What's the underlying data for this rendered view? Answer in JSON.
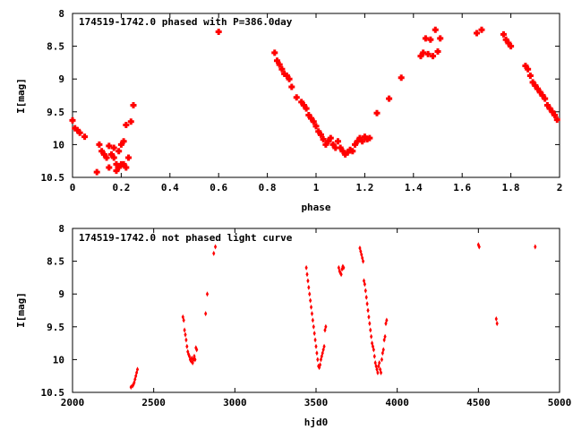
{
  "colors": {
    "points": "#ff0000",
    "axes": "#000000",
    "background": "#ffffff"
  },
  "chart_data": [
    {
      "type": "scatter",
      "title": "174519-1742.0 phased with P=386.0day",
      "xlabel": "phase",
      "ylabel": "I[mag]",
      "xlim": [
        0,
        2
      ],
      "ylim": [
        8,
        10.5
      ],
      "y_inverted": true,
      "xticks": [
        "0",
        "0.2",
        "0.4",
        "0.6",
        "0.8",
        "1",
        "1.2",
        "1.4",
        "1.6",
        "1.8",
        "2"
      ],
      "yticks": [
        "8",
        "8.5",
        "9",
        "9.5",
        "10",
        "10.5"
      ],
      "marker": "cross",
      "series": [
        {
          "x": [
            0.0,
            0.01,
            0.02,
            0.03,
            0.05,
            0.1,
            0.11,
            0.12,
            0.13,
            0.14,
            0.15,
            0.15,
            0.16,
            0.17,
            0.17,
            0.18,
            0.18,
            0.19,
            0.19,
            0.2,
            0.2,
            0.21,
            0.21,
            0.22,
            0.22,
            0.23,
            0.24,
            0.25,
            0.6,
            0.83,
            0.84,
            0.85,
            0.86,
            0.87,
            0.88,
            0.89,
            0.9,
            0.92,
            0.94,
            0.95,
            0.96,
            0.97,
            0.98,
            0.99,
            1.0,
            1.01,
            1.02,
            1.03,
            1.04,
            1.05,
            1.06,
            1.07,
            1.08,
            1.09,
            1.1,
            1.11,
            1.12,
            1.13,
            1.14,
            1.15,
            1.16,
            1.17,
            1.18,
            1.19,
            1.2,
            1.21,
            1.22,
            1.25,
            1.3,
            1.35,
            1.43,
            1.44,
            1.45,
            1.46,
            1.47,
            1.48,
            1.49,
            1.5,
            1.51,
            1.66,
            1.68,
            1.77,
            1.78,
            1.79,
            1.8,
            1.86,
            1.87,
            1.88,
            1.89,
            1.9,
            1.91,
            1.92,
            1.93,
            1.94,
            1.95,
            1.96,
            1.97,
            1.98,
            1.99
          ],
          "y": [
            9.63,
            9.75,
            9.78,
            9.82,
            9.88,
            10.42,
            10.0,
            10.1,
            10.15,
            10.2,
            10.02,
            10.35,
            10.15,
            10.2,
            10.05,
            10.3,
            10.4,
            10.35,
            10.1,
            10.3,
            10.0,
            9.95,
            10.3,
            9.7,
            10.35,
            10.2,
            9.65,
            9.4,
            8.28,
            8.6,
            8.72,
            8.78,
            8.85,
            8.92,
            8.95,
            9.0,
            9.12,
            9.28,
            9.35,
            9.4,
            9.45,
            9.55,
            9.6,
            9.65,
            9.72,
            9.8,
            9.85,
            9.92,
            10.0,
            9.95,
            9.9,
            10.0,
            10.05,
            9.95,
            10.05,
            10.1,
            10.15,
            10.12,
            10.08,
            10.1,
            10.0,
            9.95,
            9.9,
            9.95,
            9.88,
            9.92,
            9.9,
            9.52,
            9.3,
            8.98,
            8.65,
            8.6,
            8.38,
            8.62,
            8.4,
            8.65,
            8.25,
            8.58,
            8.38,
            8.3,
            8.25,
            8.32,
            8.4,
            8.45,
            8.5,
            8.8,
            8.85,
            8.95,
            9.05,
            9.1,
            9.15,
            9.2,
            9.25,
            9.3,
            9.4,
            9.45,
            9.5,
            9.55,
            9.62
          ]
        }
      ]
    },
    {
      "type": "scatter",
      "title": "174519-1742.0 not phased light curve",
      "xlabel": "hjd0",
      "ylabel": "I[mag]",
      "xlim": [
        2000,
        5000
      ],
      "ylim": [
        8,
        10.5
      ],
      "y_inverted": true,
      "xticks": [
        "2000",
        "2500",
        "3000",
        "3500",
        "4000",
        "4500",
        "5000"
      ],
      "yticks": [
        "8",
        "8.5",
        "9",
        "9.5",
        "10",
        "10.5"
      ],
      "marker": "diamond",
      "series": [
        {
          "x": [
            2360,
            2370,
            2375,
            2380,
            2385,
            2390,
            2395,
            2400,
            2680,
            2685,
            2690,
            2695,
            2700,
            2705,
            2710,
            2715,
            2720,
            2725,
            2730,
            2735,
            2740,
            2745,
            2750,
            2755,
            2760,
            2765,
            2820,
            2830,
            2870,
            2880,
            3440,
            3445,
            3450,
            3455,
            3460,
            3465,
            3470,
            3475,
            3480,
            3485,
            3490,
            3495,
            3500,
            3505,
            3510,
            3515,
            3520,
            3525,
            3530,
            3535,
            3540,
            3545,
            3550,
            3555,
            3560,
            3640,
            3645,
            3650,
            3655,
            3660,
            3665,
            3670,
            3770,
            3775,
            3780,
            3785,
            3790,
            3795,
            3800,
            3805,
            3810,
            3815,
            3820,
            3825,
            3830,
            3835,
            3840,
            3845,
            3850,
            3855,
            3860,
            3865,
            3870,
            3875,
            3880,
            3885,
            3890,
            3895,
            3900,
            3905,
            3910,
            3915,
            3920,
            3925,
            3930,
            3935,
            4500,
            4505,
            4610,
            4615,
            4850
          ],
          "y": [
            10.42,
            10.4,
            10.38,
            10.35,
            10.3,
            10.25,
            10.2,
            10.15,
            9.35,
            9.4,
            9.55,
            9.62,
            9.7,
            9.8,
            9.88,
            9.92,
            9.95,
            10.0,
            10.02,
            9.98,
            10.05,
            10.0,
            9.95,
            10.0,
            9.82,
            9.85,
            9.3,
            9.0,
            8.38,
            8.28,
            8.6,
            8.7,
            8.8,
            8.9,
            9.0,
            9.1,
            9.2,
            9.3,
            9.4,
            9.5,
            9.6,
            9.7,
            9.8,
            9.9,
            10.0,
            10.1,
            10.12,
            10.08,
            10.0,
            9.95,
            9.9,
            9.85,
            9.8,
            9.55,
            9.5,
            8.6,
            8.65,
            8.68,
            8.7,
            8.62,
            8.58,
            8.6,
            8.3,
            8.35,
            8.4,
            8.45,
            8.5,
            8.8,
            8.85,
            8.95,
            9.05,
            9.15,
            9.25,
            9.35,
            9.45,
            9.55,
            9.65,
            9.75,
            9.8,
            9.85,
            9.95,
            10.05,
            10.1,
            10.15,
            10.2,
            10.1,
            10.05,
            10.15,
            10.2,
            10.0,
            9.9,
            9.85,
            9.7,
            9.65,
            9.45,
            9.4,
            8.25,
            8.28,
            9.38,
            9.45,
            8.28
          ]
        }
      ]
    }
  ]
}
